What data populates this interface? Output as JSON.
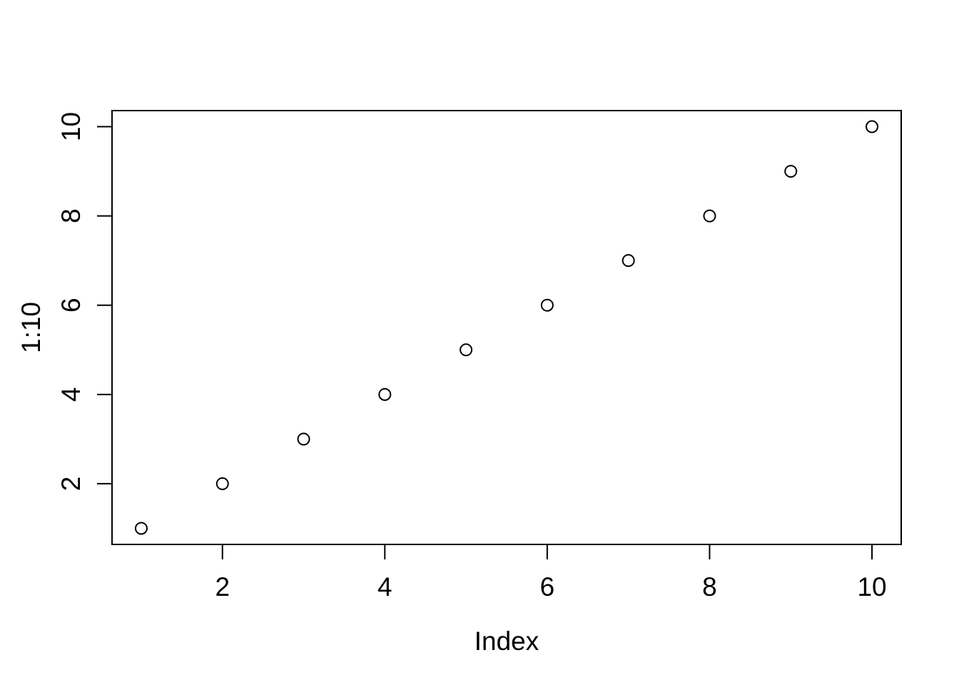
{
  "figure": {
    "background": "#ffffff",
    "foreground": "#000000"
  },
  "chart_data": {
    "type": "scatter",
    "title": "",
    "xlabel": "Index",
    "ylabel": "1:10",
    "x": [
      1,
      2,
      3,
      4,
      5,
      6,
      7,
      8,
      9,
      10
    ],
    "y": [
      1,
      2,
      3,
      4,
      5,
      6,
      7,
      8,
      9,
      10
    ],
    "xlim": [
      0.64,
      10.36
    ],
    "ylim": [
      0.64,
      10.36
    ],
    "x_ticks": [
      2,
      4,
      6,
      8,
      10
    ],
    "y_ticks": [
      2,
      4,
      6,
      8,
      10
    ],
    "x_tick_labels": [
      "2",
      "4",
      "6",
      "8",
      "10"
    ],
    "y_tick_labels": [
      "2",
      "4",
      "6",
      "8",
      "10"
    ],
    "grid": "off",
    "legend": "none",
    "box": "full",
    "marker": "open-circle",
    "marker_color": "#000000",
    "axis_color": "#000000",
    "background_color": "#ffffff"
  }
}
